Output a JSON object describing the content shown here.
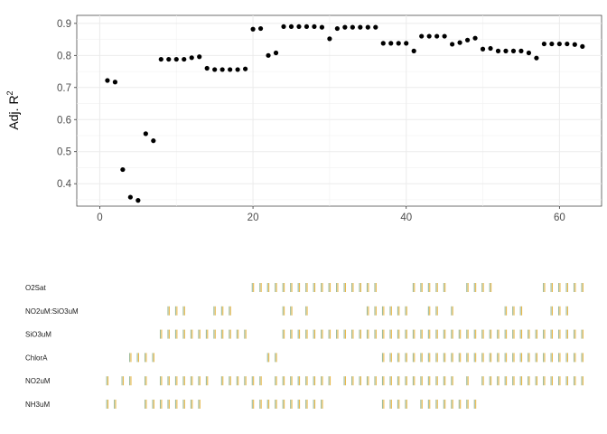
{
  "chart_data": [
    {
      "type": "scatter",
      "title": "",
      "xlabel": "",
      "ylabel": "Adj. R",
      "ylabel_superscript": "2",
      "xlim": [
        -3,
        65.5
      ],
      "ylim": [
        0.33,
        0.925
      ],
      "x_ticks": [
        0,
        20,
        40,
        60
      ],
      "x_tick_labels": [
        "0",
        "20",
        "40",
        "60"
      ],
      "y_ticks": [
        0.4,
        0.5,
        0.6,
        0.7,
        0.8,
        0.9
      ],
      "y_tick_labels": [
        "0.4",
        "0.5",
        "0.6",
        "0.7",
        "0.8",
        "0.9"
      ],
      "grid": true,
      "point_color": "#000000",
      "x": [
        1,
        2,
        3,
        4,
        5,
        6,
        7,
        8,
        9,
        10,
        11,
        12,
        13,
        14,
        15,
        16,
        17,
        18,
        19,
        20,
        21,
        22,
        23,
        24,
        25,
        26,
        27,
        28,
        29,
        30,
        31,
        32,
        33,
        34,
        35,
        36,
        37,
        38,
        39,
        40,
        41,
        42,
        43,
        44,
        45,
        46,
        47,
        48,
        49,
        50,
        51,
        52,
        53,
        54,
        55,
        56,
        57,
        58,
        59,
        60,
        61,
        62,
        63
      ],
      "y": [
        0.722,
        0.717,
        0.444,
        0.358,
        0.348,
        0.556,
        0.534,
        0.788,
        0.788,
        0.788,
        0.788,
        0.793,
        0.796,
        0.76,
        0.756,
        0.756,
        0.756,
        0.756,
        0.758,
        0.882,
        0.884,
        0.8,
        0.808,
        0.89,
        0.89,
        0.89,
        0.89,
        0.89,
        0.888,
        0.852,
        0.884,
        0.888,
        0.888,
        0.888,
        0.888,
        0.888,
        0.838,
        0.838,
        0.838,
        0.838,
        0.814,
        0.86,
        0.86,
        0.86,
        0.86,
        0.835,
        0.84,
        0.848,
        0.854,
        0.82,
        0.822,
        0.814,
        0.814,
        0.814,
        0.814,
        0.808,
        0.792,
        0.836,
        0.836,
        0.836,
        0.836,
        0.834,
        0.828
      ]
    },
    {
      "type": "heatmap",
      "title": "",
      "xlim": [
        -3,
        65.5
      ],
      "rows": [
        {
          "label": "O2Sat",
          "present": [
            20,
            21,
            22,
            23,
            24,
            25,
            26,
            27,
            28,
            29,
            30,
            31,
            32,
            33,
            34,
            35,
            36,
            41,
            42,
            43,
            44,
            45,
            48,
            49,
            50,
            51,
            58,
            59,
            60,
            61,
            62,
            63
          ]
        },
        {
          "label": "NO2uM:SiO3uM",
          "present": [
            9,
            10,
            11,
            15,
            16,
            17,
            24,
            25,
            27,
            35,
            36,
            37,
            38,
            39,
            40,
            43,
            44,
            46,
            53,
            54,
            55,
            59,
            60,
            61
          ]
        },
        {
          "label": "SiO3uM",
          "present": [
            8,
            9,
            10,
            11,
            12,
            13,
            14,
            15,
            16,
            17,
            18,
            19,
            24,
            25,
            26,
            27,
            28,
            29,
            30,
            31,
            32,
            33,
            34,
            35,
            36,
            37,
            38,
            39,
            40,
            41,
            42,
            43,
            44,
            45,
            46,
            47,
            48,
            49,
            50,
            51,
            52,
            53,
            54,
            55,
            56,
            57,
            58,
            59,
            60,
            61,
            62,
            63
          ]
        },
        {
          "label": "ChlorA",
          "present": [
            4,
            5,
            6,
            7,
            22,
            23,
            37,
            38,
            39,
            40,
            41,
            42,
            43,
            44,
            45,
            46,
            47,
            48,
            49,
            50,
            51,
            52,
            53,
            54,
            55,
            56,
            57,
            58,
            59,
            60,
            61,
            62,
            63
          ]
        },
        {
          "label": "NO2uM",
          "present": [
            1,
            3,
            4,
            6,
            8,
            9,
            10,
            11,
            12,
            13,
            14,
            16,
            17,
            18,
            19,
            20,
            21,
            23,
            24,
            25,
            26,
            27,
            28,
            29,
            30,
            32,
            33,
            34,
            35,
            36,
            37,
            38,
            39,
            40,
            41,
            42,
            43,
            44,
            45,
            46,
            48,
            50,
            51,
            52,
            53,
            54,
            55,
            56,
            57,
            58,
            59,
            60,
            61,
            62,
            63
          ]
        },
        {
          "label": "NH3uM",
          "present": [
            1,
            2,
            6,
            7,
            8,
            9,
            10,
            11,
            12,
            13,
            20,
            21,
            22,
            23,
            24,
            25,
            26,
            27,
            28,
            29,
            37,
            38,
            39,
            40,
            42,
            43,
            44,
            45,
            46,
            47,
            48,
            49
          ]
        }
      ],
      "mark_colors": [
        "#9dbb9a",
        "#e8b84c"
      ]
    }
  ]
}
